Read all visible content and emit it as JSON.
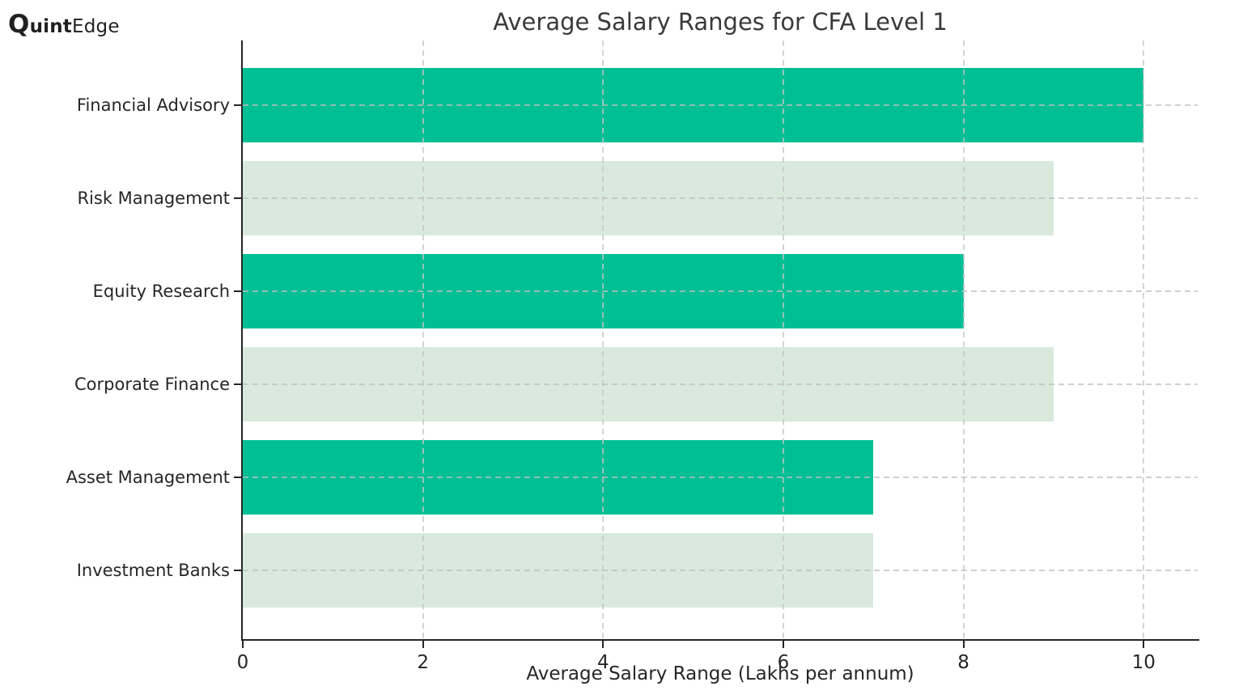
{
  "logo": {
    "q": "Q",
    "quint_rest": "uint",
    "edge": "Edge"
  },
  "chart_data": {
    "type": "bar",
    "orientation": "horizontal",
    "title": "Average Salary Ranges for CFA Level 1",
    "xlabel": "Average Salary Range (Lakhs per annum)",
    "ylabel": "",
    "categories": [
      "Financial Advisory",
      "Risk Management",
      "Equity Research",
      "Corporate Finance",
      "Asset Management",
      "Investment Banks"
    ],
    "values": [
      10,
      9,
      8,
      9,
      7,
      7
    ],
    "bar_colors": [
      "#00BF95",
      "#D9EADD",
      "#00BF95",
      "#D9EADD",
      "#00BF95",
      "#D9EADD"
    ],
    "xticks": [
      0,
      2,
      4,
      6,
      8,
      10
    ],
    "xlim": [
      0,
      10.6
    ],
    "grid": true,
    "grid_style": "dashed",
    "legend": null,
    "colors": {
      "bar_solid": "#00BF95",
      "bar_light": "#D9EADD",
      "gridline": "#c6c6c6",
      "axis": "#262626",
      "title_text": "#3a3a3a",
      "label_text": "#262626",
      "background": "#ffffff"
    }
  }
}
